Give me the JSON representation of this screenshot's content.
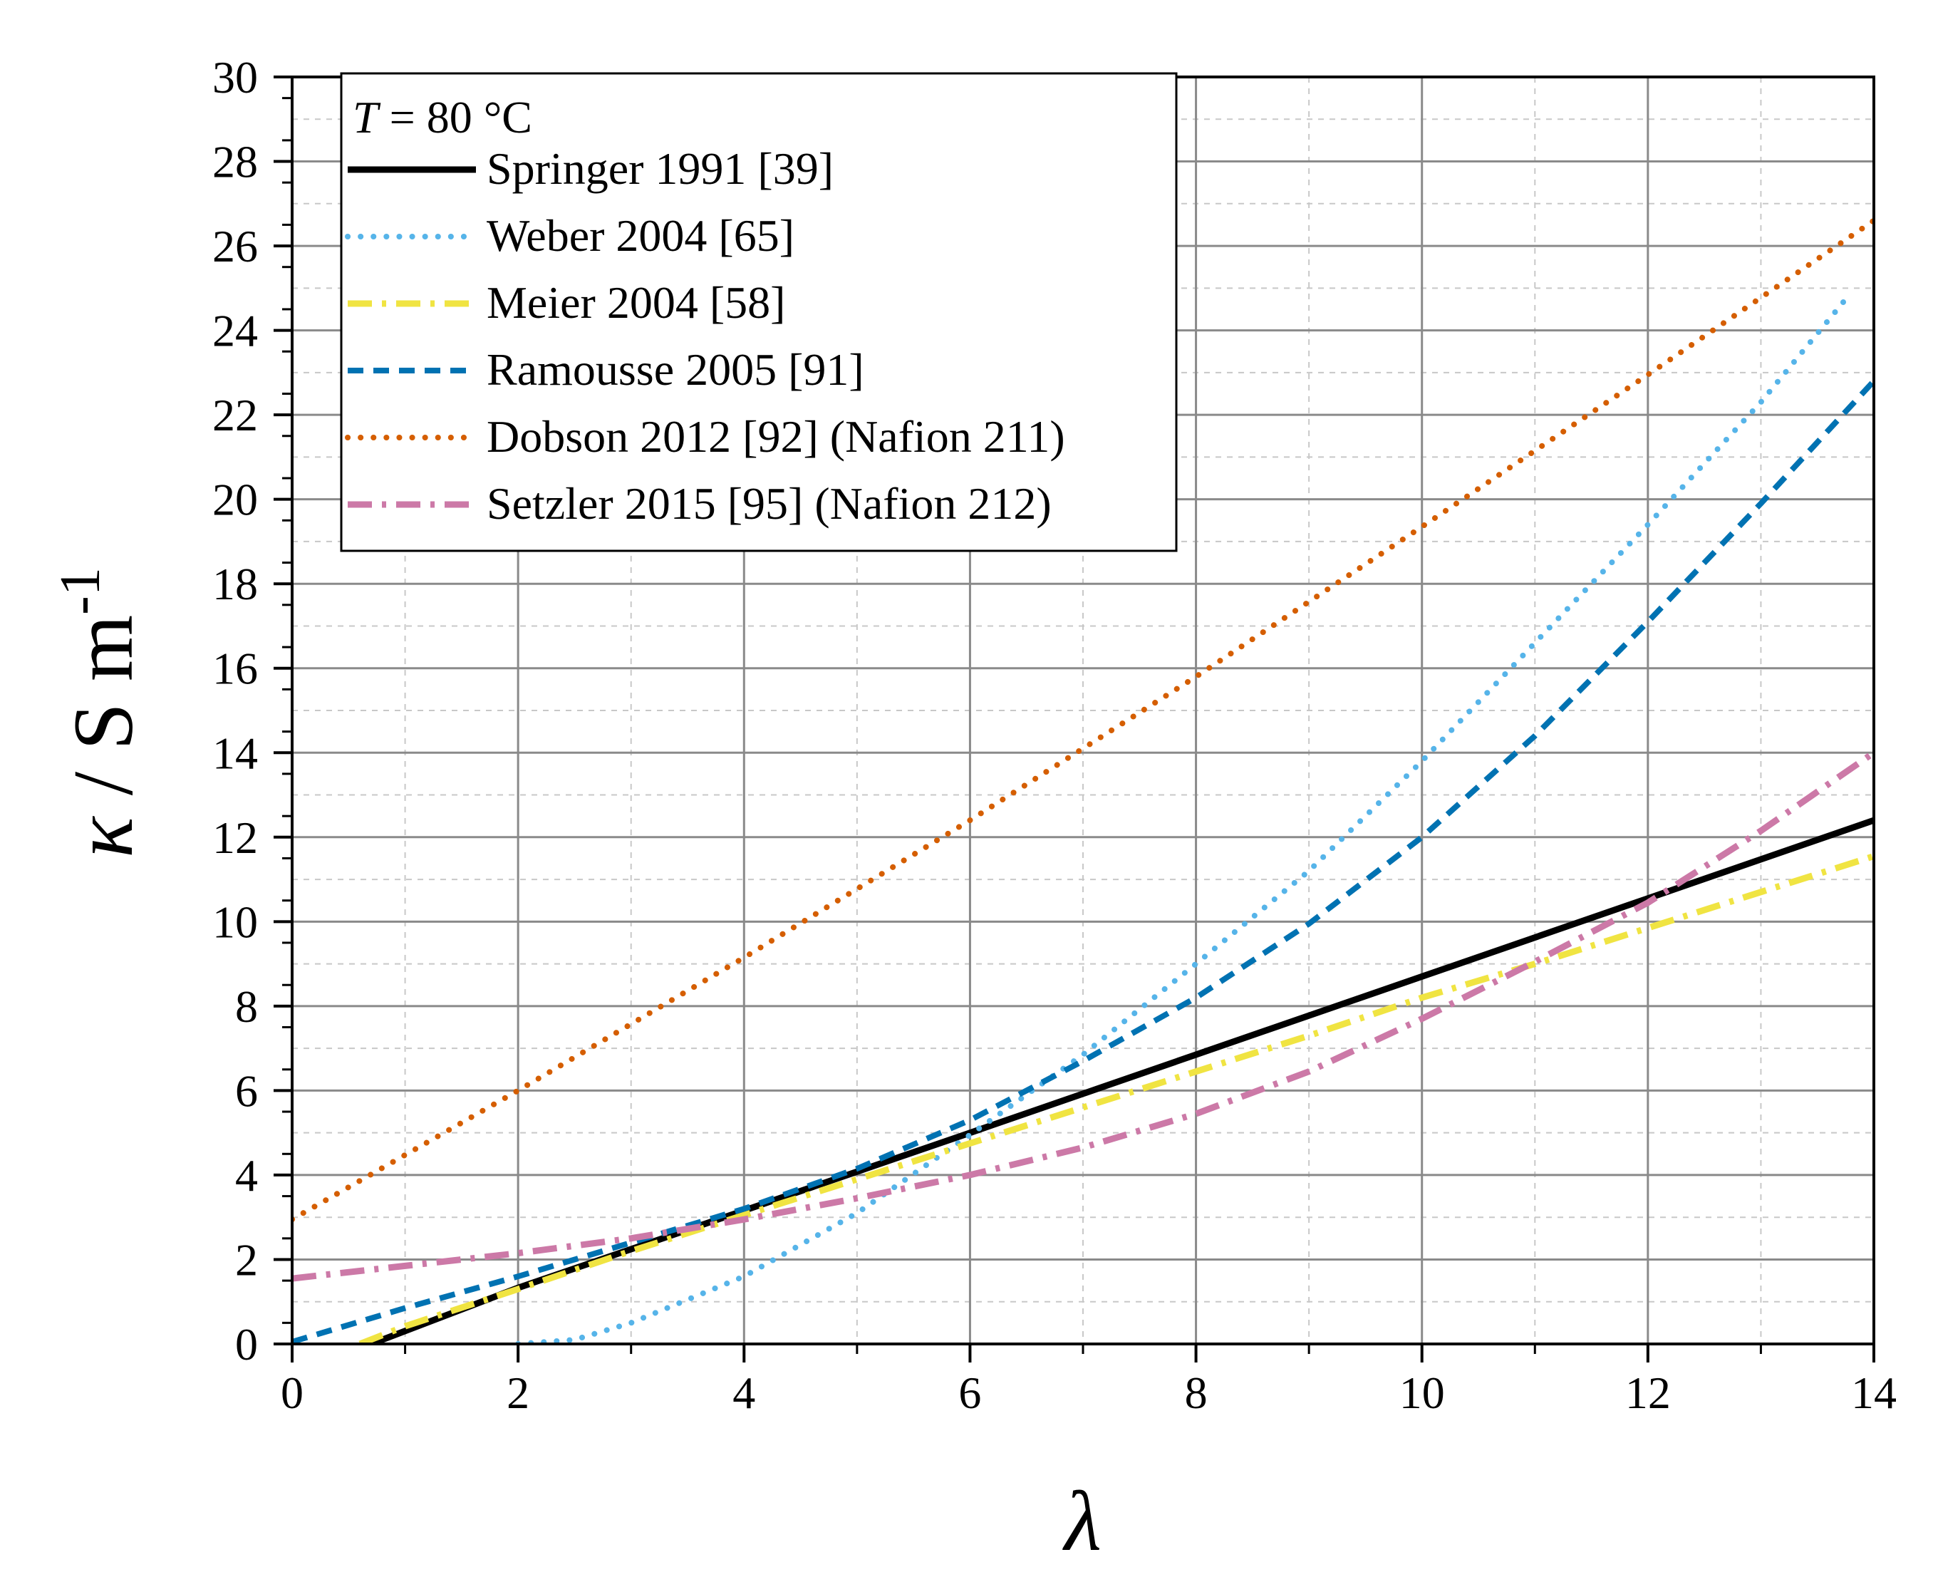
{
  "chart_data": {
    "type": "line",
    "title": "",
    "xlabel": "λ",
    "ylabel": {
      "kappa": "κ",
      "rest": " / S m",
      "sup": "-1"
    },
    "xlim": [
      0,
      14
    ],
    "ylim": [
      0,
      30
    ],
    "xticks": [
      0,
      2,
      4,
      6,
      8,
      10,
      12,
      14
    ],
    "yticks": [
      0,
      2,
      4,
      6,
      8,
      10,
      12,
      14,
      16,
      18,
      20,
      22,
      24,
      26,
      28,
      30
    ],
    "grid": true,
    "legend_position": "top-left",
    "legend_header": {
      "var": "T",
      "text": " = 80 °C"
    },
    "series": [
      {
        "name": "Springer 1991 [39]",
        "color": "#000000",
        "style": "solid",
        "points": [
          [
            0.7,
            0
          ],
          [
            2,
            1.33
          ],
          [
            4,
            3.16
          ],
          [
            6,
            5.0
          ],
          [
            8,
            6.85
          ],
          [
            10,
            8.7
          ],
          [
            12,
            10.55
          ],
          [
            14,
            12.4
          ]
        ]
      },
      {
        "name": "Weber 2004 [65]",
        "color": "#56B4E9",
        "style": "dotted",
        "points": [
          [
            2,
            0
          ],
          [
            2.5,
            0.1
          ],
          [
            3,
            0.5
          ],
          [
            4,
            1.6
          ],
          [
            5,
            3.1
          ],
          [
            6,
            4.95
          ],
          [
            7,
            6.85
          ],
          [
            8,
            9.0
          ],
          [
            9,
            11.2
          ],
          [
            10,
            13.8
          ],
          [
            11,
            16.6
          ],
          [
            12,
            19.4
          ],
          [
            13,
            22.3
          ],
          [
            13.8,
            24.9
          ]
        ]
      },
      {
        "name": "Meier 2004 [58]",
        "color": "#F0E442",
        "style": "dashdot",
        "points": [
          [
            0.6,
            0
          ],
          [
            1,
            0.42
          ],
          [
            2,
            1.3
          ],
          [
            3,
            2.2
          ],
          [
            4,
            3.05
          ],
          [
            5,
            3.9
          ],
          [
            6,
            4.75
          ],
          [
            7,
            5.6
          ],
          [
            8,
            6.45
          ],
          [
            9,
            7.3
          ],
          [
            10,
            8.2
          ],
          [
            11,
            9.0
          ],
          [
            12,
            9.85
          ],
          [
            13,
            10.7
          ],
          [
            14,
            11.55
          ]
        ]
      },
      {
        "name": "Ramousse 2005 [91]",
        "color": "#0072B2",
        "style": "dashed",
        "points": [
          [
            0,
            0.05
          ],
          [
            1,
            0.85
          ],
          [
            2,
            1.6
          ],
          [
            3,
            2.4
          ],
          [
            4,
            3.2
          ],
          [
            5,
            4.15
          ],
          [
            6,
            5.3
          ],
          [
            7,
            6.7
          ],
          [
            8,
            8.2
          ],
          [
            9,
            9.95
          ],
          [
            10,
            12.0
          ],
          [
            11,
            14.4
          ],
          [
            12,
            17.1
          ],
          [
            13,
            19.9
          ],
          [
            14,
            22.8
          ]
        ]
      },
      {
        "name": "Dobson 2012 [92] (Nafion 211)",
        "color": "#D55E00",
        "style": "dotted",
        "points": [
          [
            0,
            2.95
          ],
          [
            2,
            6.0
          ],
          [
            4,
            9.15
          ],
          [
            6,
            12.4
          ],
          [
            8,
            15.8
          ],
          [
            10,
            19.35
          ],
          [
            12,
            22.95
          ],
          [
            14,
            26.6
          ]
        ]
      },
      {
        "name": "Setzler 2015 [95] (Nafion 212)",
        "color": "#CC79A7",
        "style": "dashdot",
        "points": [
          [
            0,
            1.55
          ],
          [
            1,
            1.85
          ],
          [
            2,
            2.15
          ],
          [
            3,
            2.5
          ],
          [
            4,
            2.95
          ],
          [
            5,
            3.45
          ],
          [
            6,
            4.0
          ],
          [
            7,
            4.65
          ],
          [
            8,
            5.45
          ],
          [
            9,
            6.45
          ],
          [
            10,
            7.7
          ],
          [
            11,
            9.05
          ],
          [
            12,
            10.45
          ],
          [
            13,
            12.15
          ],
          [
            14,
            14.0
          ]
        ]
      }
    ]
  }
}
